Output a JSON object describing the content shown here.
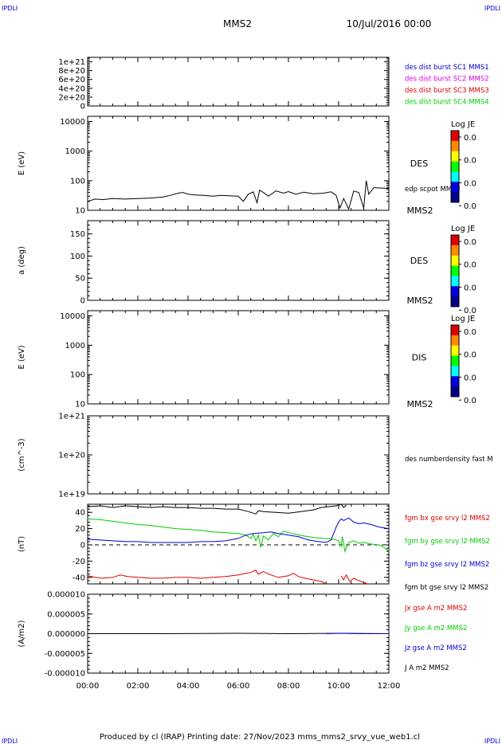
{
  "corner_labels": {
    "tl": "IPDLI",
    "tr": "IPDLI",
    "bl": "IPDLI",
    "br": "IPDLI"
  },
  "header": {
    "spacecraft": "MMS2",
    "date": "10/Jul/2016 00:00"
  },
  "footer": "Produced by cl (IRAP)   Printing date: 27/Nov/2023   mms_mms2_srvy_vue_web1.cl",
  "colors": {
    "black": "#000000",
    "red": "#dd0000",
    "green": "#00cc00",
    "blue": "#0000cc",
    "magenta": "#dd00dd"
  },
  "chart_data": [
    {
      "id": "dist_counts",
      "type": "line",
      "ylim": [
        0,
        1.1e+21
      ],
      "ticks": [
        {
          "v": 0,
          "l": "0"
        },
        {
          "v": 2e+20,
          "l": "2e+20"
        },
        {
          "v": 4e+20,
          "l": "4e+20"
        },
        {
          "v": 6e+20,
          "l": "6e+20"
        },
        {
          "v": 8e+20,
          "l": "8e+20"
        },
        {
          "v": 1e+21,
          "l": "1e+21"
        }
      ],
      "ylabel": "",
      "zero_dashed": true,
      "legend": [
        {
          "label": "des dist burst SC1 MMS1",
          "color": "#0000cc"
        },
        {
          "label": "des dist burst SC2 MMS2",
          "color": "#dd00dd"
        },
        {
          "label": "des dist burst SC3 MMS3",
          "color": "#dd0000"
        },
        {
          "label": "des dist burst SC4 MMS4",
          "color": "#00cc00"
        }
      ],
      "series": []
    },
    {
      "id": "des_energy",
      "type": "line",
      "scale": "log",
      "ylim": [
        10,
        15000
      ],
      "ticks": [
        {
          "v": 10,
          "l": "10"
        },
        {
          "v": 100,
          "l": "100"
        },
        {
          "v": 1000,
          "l": "1000"
        },
        {
          "v": 10000,
          "l": "10000"
        }
      ],
      "ylabel": "E (eV)",
      "side_label": "DES",
      "bottom_label": "MMS2",
      "legend": [
        {
          "label": "edp scpot MMS2",
          "color": "#000000"
        }
      ],
      "colorbar": {
        "title": "Log JE",
        "ticks": [
          "0.0",
          "0.0",
          "0.0",
          "0.0"
        ]
      },
      "series": [
        {
          "color": "#000000",
          "points": [
            [
              0,
              20
            ],
            [
              0.3,
              24
            ],
            [
              0.6,
              23
            ],
            [
              1,
              25
            ],
            [
              1.5,
              24
            ],
            [
              2,
              25
            ],
            [
              2.5,
              26
            ],
            [
              3,
              28
            ],
            [
              3.3,
              32
            ],
            [
              3.6,
              38
            ],
            [
              3.8,
              40
            ],
            [
              4,
              35
            ],
            [
              4.3,
              33
            ],
            [
              4.6,
              32
            ],
            [
              5,
              30
            ],
            [
              5.3,
              32
            ],
            [
              5.6,
              31
            ],
            [
              6,
              30
            ],
            [
              6.2,
              20
            ],
            [
              6.4,
              35
            ],
            [
              6.6,
              42
            ],
            [
              6.75,
              18
            ],
            [
              6.85,
              48
            ],
            [
              7,
              40
            ],
            [
              7.2,
              30
            ],
            [
              7.5,
              45
            ],
            [
              7.8,
              38
            ],
            [
              8,
              43
            ],
            [
              8.3,
              35
            ],
            [
              8.6,
              41
            ],
            [
              9,
              36
            ],
            [
              9.4,
              38
            ],
            [
              9.7,
              42
            ],
            [
              9.9,
              32
            ],
            [
              10.05,
              12
            ],
            [
              10.2,
              25
            ],
            [
              10.4,
              11
            ],
            [
              10.6,
              45
            ],
            [
              10.8,
              40
            ],
            [
              11,
              12
            ],
            [
              11.1,
              100
            ],
            [
              11.2,
              35
            ],
            [
              11.4,
              58
            ],
            [
              12,
              55
            ]
          ]
        }
      ]
    },
    {
      "id": "des_pitch",
      "type": "heatmap",
      "ylim": [
        0,
        180
      ],
      "ticks": [
        {
          "v": 0,
          "l": "0"
        },
        {
          "v": 50,
          "l": "50"
        },
        {
          "v": 100,
          "l": "100"
        },
        {
          "v": 150,
          "l": "150"
        }
      ],
      "ylabel": "a (deg)",
      "side_label": "DES",
      "bottom_label": "MMS2",
      "colorbar": {
        "title": "Log JE",
        "ticks": [
          "0.0",
          "0.0",
          "0.0",
          "0.0"
        ]
      },
      "series": []
    },
    {
      "id": "dis_energy",
      "type": "heatmap",
      "scale": "log",
      "ylim": [
        10,
        15000
      ],
      "ticks": [
        {
          "v": 10,
          "l": "10"
        },
        {
          "v": 100,
          "l": "100"
        },
        {
          "v": 1000,
          "l": "1000"
        },
        {
          "v": 10000,
          "l": "10000"
        }
      ],
      "ylabel": "E (eV)",
      "side_label": "DIS",
      "bottom_label": "MMS2",
      "colorbar": {
        "title": "Log JE",
        "ticks": [
          "0.0",
          "0.0",
          "0.0",
          "0.0"
        ]
      },
      "series": []
    },
    {
      "id": "density",
      "type": "line",
      "scale": "log",
      "ylim": [
        1e+19,
        1e+21
      ],
      "ticks": [
        {
          "v": 1e+19,
          "l": "1e+19"
        },
        {
          "v": 1e+20,
          "l": "1e+20"
        },
        {
          "v": 1e+21,
          "l": "1e+21"
        }
      ],
      "ylabel": "(cm^-3)",
      "legend": [
        {
          "label": "des numberdensity fast M",
          "color": "#000000"
        }
      ],
      "series": []
    },
    {
      "id": "fgm",
      "type": "line",
      "ylim": [
        -48,
        50
      ],
      "ticks": [
        {
          "v": -40,
          "l": "-40"
        },
        {
          "v": -20,
          "l": "-20"
        },
        {
          "v": 0,
          "l": "0"
        },
        {
          "v": 20,
          "l": "20"
        },
        {
          "v": 40,
          "l": "40"
        }
      ],
      "ylabel": "(nT)",
      "zero_dashed": true,
      "legend": [
        {
          "label": "fgm bx gse srvy l2 MMS2",
          "color": "#dd0000"
        },
        {
          "label": "fgm by gse srvy l2 MMS2",
          "color": "#00cc00"
        },
        {
          "label": "fgm bz gse srvy l2 MMS2",
          "color": "#0000cc"
        },
        {
          "label": "fgm bt gse srvy l2 MMS2",
          "color": "#000000"
        }
      ],
      "series": [
        {
          "color": "#000000",
          "points": [
            [
              0,
              47
            ],
            [
              0.5,
              48
            ],
            [
              1,
              46
            ],
            [
              1.5,
              48
            ],
            [
              2,
              47
            ],
            [
              2.5,
              46
            ],
            [
              3,
              47
            ],
            [
              3.5,
              46
            ],
            [
              4,
              46
            ],
            [
              4.5,
              45
            ],
            [
              5,
              45
            ],
            [
              5.5,
              44
            ],
            [
              6,
              44
            ],
            [
              6.4,
              41
            ],
            [
              6.7,
              38
            ],
            [
              6.8,
              42
            ],
            [
              7,
              41
            ],
            [
              7.5,
              40
            ],
            [
              8,
              39
            ],
            [
              8.5,
              41
            ],
            [
              9,
              43
            ],
            [
              9.3,
              46
            ],
            [
              9.6,
              47
            ],
            [
              9.9,
              48
            ],
            [
              10.1,
              50
            ],
            [
              10.2,
              46
            ],
            [
              10.3,
              49
            ]
          ]
        },
        {
          "color": "#00cc00",
          "points": [
            [
              0,
              32
            ],
            [
              0.5,
              31
            ],
            [
              1,
              29
            ],
            [
              1.5,
              27
            ],
            [
              2,
              25
            ],
            [
              2.5,
              24
            ],
            [
              3,
              22
            ],
            [
              3.5,
              20
            ],
            [
              4,
              19
            ],
            [
              4.5,
              18
            ],
            [
              5,
              16
            ],
            [
              5.5,
              15
            ],
            [
              6,
              14
            ],
            [
              6.3,
              12
            ],
            [
              6.5,
              8
            ],
            [
              6.6,
              13
            ],
            [
              6.7,
              5
            ],
            [
              6.8,
              12
            ],
            [
              6.9,
              -3
            ],
            [
              7,
              11
            ],
            [
              7.2,
              6
            ],
            [
              7.4,
              14
            ],
            [
              7.6,
              10
            ],
            [
              7.8,
              17
            ],
            [
              8,
              15
            ],
            [
              8.3,
              13
            ],
            [
              8.6,
              11
            ],
            [
              9,
              9
            ],
            [
              9.4,
              8
            ],
            [
              9.8,
              7
            ],
            [
              10,
              5
            ],
            [
              10.1,
              -2
            ],
            [
              10.15,
              10
            ],
            [
              10.25,
              -8
            ],
            [
              10.4,
              3
            ],
            [
              10.6,
              5
            ],
            [
              10.8,
              2
            ],
            [
              11,
              3
            ],
            [
              11.3,
              1
            ],
            [
              11.6,
              0
            ],
            [
              11.8,
              -3
            ],
            [
              12,
              -8
            ]
          ]
        },
        {
          "color": "#0000cc",
          "points": [
            [
              0,
              7
            ],
            [
              0.5,
              6
            ],
            [
              1,
              5
            ],
            [
              1.5,
              4
            ],
            [
              2,
              4
            ],
            [
              2.5,
              3
            ],
            [
              3,
              3
            ],
            [
              3.5,
              3
            ],
            [
              4,
              3
            ],
            [
              4.5,
              4
            ],
            [
              5,
              4
            ],
            [
              5.5,
              5
            ],
            [
              6,
              8
            ],
            [
              6.3,
              12
            ],
            [
              6.6,
              14
            ],
            [
              7,
              15
            ],
            [
              7.3,
              16
            ],
            [
              7.6,
              14
            ],
            [
              8,
              12
            ],
            [
              8.4,
              10
            ],
            [
              8.8,
              6
            ],
            [
              9.2,
              4
            ],
            [
              9.5,
              3
            ],
            [
              9.7,
              6
            ],
            [
              9.9,
              22
            ],
            [
              10,
              28
            ],
            [
              10.1,
              32
            ],
            [
              10.2,
              30
            ],
            [
              10.4,
              33
            ],
            [
              10.6,
              28
            ],
            [
              10.8,
              26
            ],
            [
              11,
              27
            ],
            [
              11.3,
              25
            ],
            [
              11.6,
              22
            ],
            [
              12,
              20
            ]
          ]
        },
        {
          "color": "#dd0000",
          "points": [
            [
              0,
              -38
            ],
            [
              0.3,
              -40
            ],
            [
              0.6,
              -41
            ],
            [
              1,
              -40
            ],
            [
              1.3,
              -37
            ],
            [
              1.6,
              -39
            ],
            [
              2,
              -40
            ],
            [
              2.5,
              -41
            ],
            [
              3,
              -41
            ],
            [
              3.5,
              -40
            ],
            [
              4,
              -40
            ],
            [
              4.5,
              -41
            ],
            [
              5,
              -40
            ],
            [
              5.5,
              -39
            ],
            [
              6,
              -37
            ],
            [
              6.3,
              -35
            ],
            [
              6.5,
              -34
            ],
            [
              6.7,
              -31
            ],
            [
              6.8,
              -36
            ],
            [
              7,
              -33
            ],
            [
              7.3,
              -37
            ],
            [
              7.6,
              -40
            ],
            [
              8,
              -38
            ],
            [
              8.2,
              -35
            ],
            [
              8.4,
              -39
            ],
            [
              8.8,
              -42
            ],
            [
              9.3,
              -45
            ],
            [
              9.5,
              -48
            ]
          ]
        },
        {
          "color": "#dd0000",
          "points": [
            [
              10.1,
              -38
            ],
            [
              10.2,
              -43
            ],
            [
              10.3,
              -37
            ],
            [
              10.45,
              -45
            ],
            [
              10.6,
              -41
            ],
            [
              10.8,
              -44
            ],
            [
              11,
              -46
            ],
            [
              11.15,
              -49
            ]
          ]
        }
      ]
    },
    {
      "id": "current",
      "type": "line",
      "ylim": [
        -1e-05,
        1e-05
      ],
      "ticks": [
        {
          "v": -1e-05,
          "l": "-0.000010"
        },
        {
          "v": -5e-06,
          "l": "-0.000005"
        },
        {
          "v": 0,
          "l": "0.000000"
        },
        {
          "v": 5e-06,
          "l": "0.000005"
        },
        {
          "v": 1e-05,
          "l": "0.000010"
        }
      ],
      "ylabel": "(A/m2)",
      "legend": [
        {
          "label": "Jx gse A m2 MMS2",
          "color": "#dd0000"
        },
        {
          "label": "Jy gse A m2 MMS2",
          "color": "#00cc00"
        },
        {
          "label": "Jz gse A m2 MMS2",
          "color": "#0000cc"
        },
        {
          "label": "J A m2 MMS2",
          "color": "#000000"
        }
      ],
      "series": [
        {
          "color": "#000000",
          "points": [
            [
              0,
              0
            ],
            [
              3,
              0
            ],
            [
              6,
              1e-07
            ],
            [
              8,
              0
            ],
            [
              10,
              1e-07
            ],
            [
              12,
              0
            ]
          ]
        },
        {
          "color": "#0000cc",
          "points": [
            [
              9.5,
              0
            ],
            [
              10,
              1e-07
            ],
            [
              11,
              0
            ],
            [
              12,
              0
            ]
          ]
        }
      ]
    }
  ],
  "x_axis": {
    "range": [
      0,
      12
    ],
    "tick_labels": [
      "00:00",
      "02:00",
      "04:00",
      "06:00",
      "08:00",
      "10:00",
      "12:00"
    ]
  }
}
